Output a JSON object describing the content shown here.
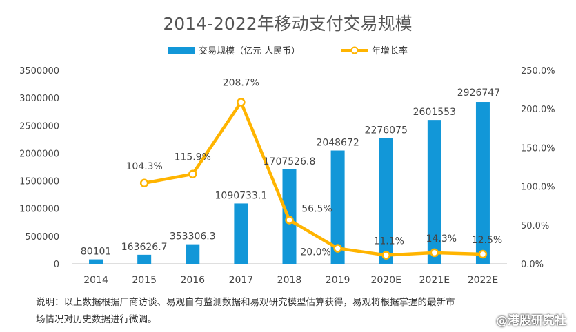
{
  "chart_data": {
    "type": "bar",
    "title": "2014-2022年移动支付交易规模",
    "categories": [
      "2014",
      "2015",
      "2016",
      "2017",
      "2018",
      "2019",
      "2020E",
      "2021E",
      "2022E"
    ],
    "series": [
      {
        "name": "交易规模（亿元 人民币）",
        "type": "bar",
        "axis": "left",
        "color": "#1297D8",
        "values": [
          80101,
          163626.7,
          353306.3,
          1090733.1,
          1707526.8,
          2048672,
          2276075,
          2601553,
          2926747
        ],
        "labels": [
          "80101",
          "163626.7",
          "353306.3",
          "1090733.1",
          "1707526.8",
          "2048672",
          "2276075",
          "2601553",
          "2926747"
        ]
      },
      {
        "name": "年增长率",
        "type": "line",
        "axis": "right",
        "color": "#FFB400",
        "values": [
          null,
          104.3,
          115.9,
          208.7,
          56.5,
          20.0,
          11.1,
          14.3,
          12.5
        ],
        "labels": [
          "",
          "104.3%",
          "115.9%",
          "208.7%",
          "56.5%",
          "20.0%",
          "11.1%",
          "14.3%",
          "12.5%"
        ]
      }
    ],
    "y_left": {
      "min": 0,
      "max": 3500000,
      "ticks": [
        "0",
        "500000",
        "1000000",
        "1500000",
        "2000000",
        "2500000",
        "3000000",
        "3500000"
      ]
    },
    "y_right": {
      "min": 0,
      "max": 250,
      "ticks": [
        "0.0%",
        "50.0%",
        "100.0%",
        "150.0%",
        "200.0%",
        "250.0%"
      ]
    },
    "legend_position": "top-center",
    "grid": false
  },
  "footnote": {
    "line1": "说明：以上数据根据厂商访谈、易观自有监测数据和易观研究模型估算获得，易观将根据掌握的最新市",
    "line2": "场情况对历史数据进行微调。"
  },
  "watermark": "@港股研究社"
}
